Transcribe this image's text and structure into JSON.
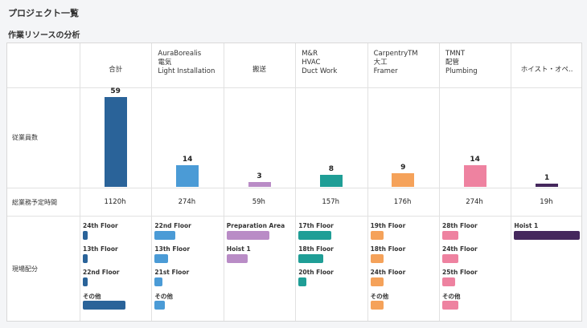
{
  "page_title": "プロジェクト一覧",
  "section_title": "作業リソースの分析",
  "row_labels": {
    "plan_count": "従業員数",
    "planned_hours": "総業務予定時間",
    "location": "現場配分"
  },
  "columns": [
    {
      "company": "",
      "trade1": "合計",
      "trade2": "",
      "color": "#2a6399",
      "count": 59,
      "hours": "1120h",
      "locations": [
        {
          "label": "24th Floor",
          "share": 0.07
        },
        {
          "label": "13th Floor",
          "share": 0.07
        },
        {
          "label": "22nd Floor",
          "share": 0.07
        },
        {
          "label": "その他",
          "share": 0.65
        }
      ]
    },
    {
      "company": "AuraBorealis",
      "trade1": "電気",
      "trade2": "Light Installation",
      "color": "#4b9bd6",
      "count": 14,
      "hours": "274h",
      "locations": [
        {
          "label": "22nd Floor",
          "share": 0.32
        },
        {
          "label": "13th Floor",
          "share": 0.2
        },
        {
          "label": "21st Floor",
          "share": 0.12
        },
        {
          "label": "その他",
          "share": 0.16
        }
      ]
    },
    {
      "company": "",
      "trade1": "搬送",
      "trade2": "",
      "color": "#b98cc6",
      "count": 3,
      "hours": "59h",
      "locations": [
        {
          "label": "Preparation Area",
          "share": 0.65
        },
        {
          "label": "Hoist 1",
          "share": 0.32
        }
      ]
    },
    {
      "company": "M&R",
      "trade1": "HVAC",
      "trade2": "Duct Work",
      "color": "#1f9e96",
      "count": 8,
      "hours": "157h",
      "locations": [
        {
          "label": "17th Floor",
          "share": 0.5
        },
        {
          "label": "18th Floor",
          "share": 0.38
        },
        {
          "label": "20th Floor",
          "share": 0.12
        }
      ]
    },
    {
      "company": "CarpentryTM",
      "trade1": "大工",
      "trade2": "Framer",
      "color": "#f5a25a",
      "count": 9,
      "hours": "176h",
      "locations": [
        {
          "label": "19th Floor",
          "share": 0.2
        },
        {
          "label": "18th Floor",
          "share": 0.2
        },
        {
          "label": "24th Floor",
          "share": 0.2
        },
        {
          "label": "その他",
          "share": 0.2
        }
      ]
    },
    {
      "company": "TMNT",
      "trade1": "配管",
      "trade2": "Plumbing",
      "color": "#ee82a0",
      "count": 14,
      "hours": "274h",
      "locations": [
        {
          "label": "28th Floor",
          "share": 0.25
        },
        {
          "label": "24th Floor",
          "share": 0.25
        },
        {
          "label": "25th Floor",
          "share": 0.2
        },
        {
          "label": "その他",
          "share": 0.25
        }
      ]
    },
    {
      "company": "",
      "trade1": "ホイスト・オペ..",
      "trade2": "",
      "color": "#44275c",
      "count": 1,
      "hours": "19h",
      "locations": [
        {
          "label": "Hoist 1",
          "share": 1.0
        }
      ]
    }
  ]
}
